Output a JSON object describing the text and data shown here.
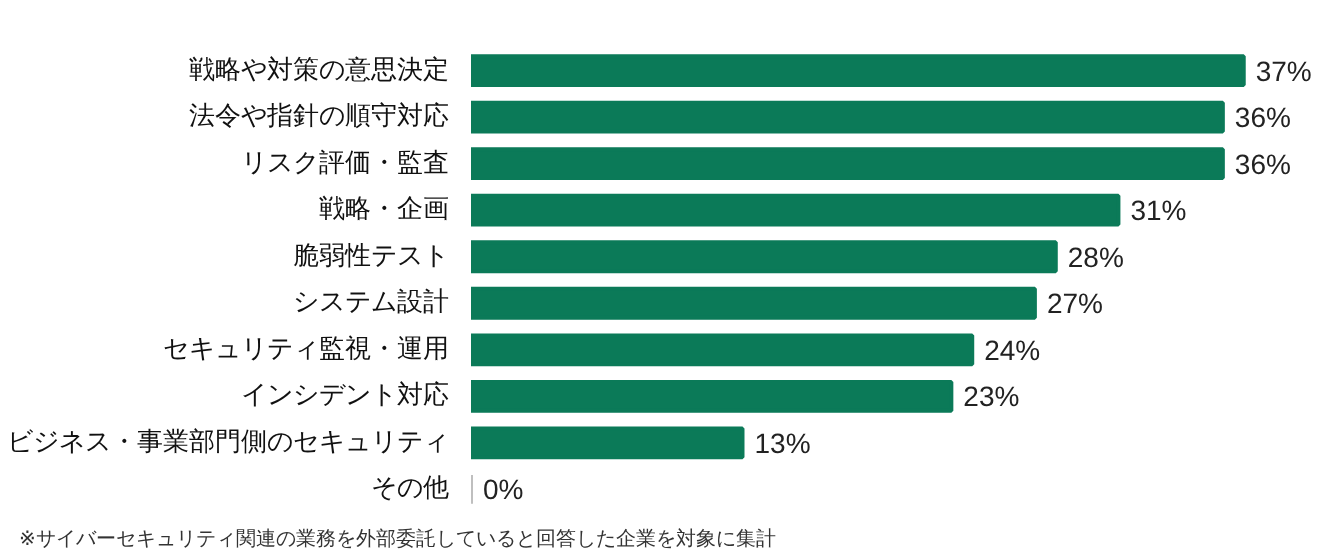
{
  "chart_data": {
    "type": "bar",
    "orientation": "horizontal",
    "relative": false,
    "categories": [
      "戦略や対策の意思決定",
      "法令や指針の順守対応",
      "リスク評価・監査",
      "戦略・企画",
      "脆弱性テスト",
      "システム設計",
      "セキュリティ監視・運用",
      "インシデント対応",
      "ビジネス・事業部門側のセキュリティ",
      "その他"
    ],
    "values": [
      37,
      36,
      36,
      31,
      28,
      27,
      24,
      23,
      13,
      0
    ],
    "value_labels": [
      "37%",
      "36%",
      "36%",
      "31%",
      "28%",
      "27%",
      "24%",
      "23%",
      "13%",
      "0%"
    ],
    "colors": [
      "#0b7a58",
      "#0b7a58",
      "#0b7a58",
      "#0b7a58",
      "#0b7a58",
      "#0b7a58",
      "#0b7a58",
      "#0b7a58",
      "#0b7a58",
      "#bfbfbf"
    ],
    "grid": false,
    "annotations": [
      "※サイバーセキュリティ関連の業務を外部委託していると回答した企業を対象に集計"
    ]
  }
}
